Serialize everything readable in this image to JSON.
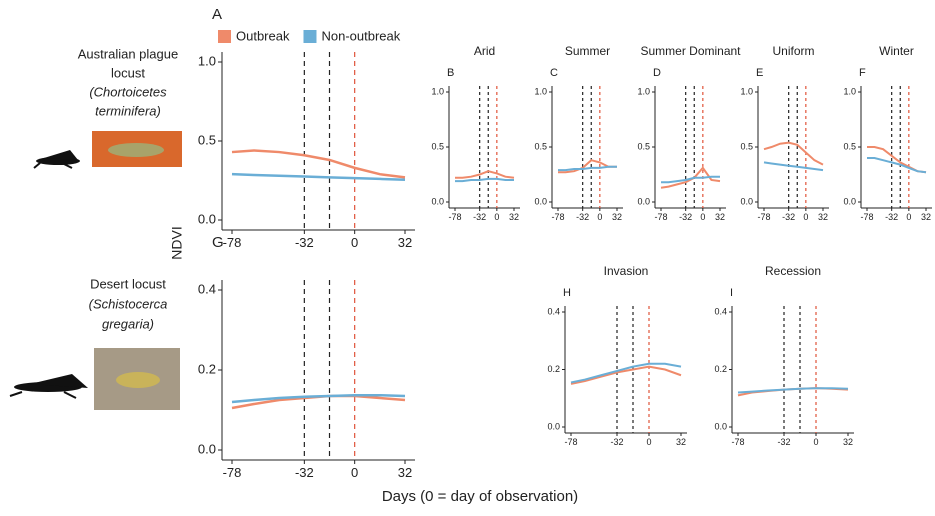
{
  "figure": {
    "y_label": "NDVI",
    "x_label": "Days (0 = day of observation)",
    "species": [
      {
        "lines": [
          "Australian plague",
          "locust",
          "(Chortoicetes",
          "terminifera)"
        ]
      },
      {
        "lines": [
          "Desert locust",
          "(Schistocerca",
          "gregaria)"
        ]
      }
    ]
  },
  "chart_data": [
    {
      "type": "line",
      "letter": "A",
      "legend": "top",
      "x": [
        -78,
        -64,
        -48,
        -32,
        -16,
        0,
        16,
        32
      ],
      "xlim": [
        -78,
        32
      ],
      "xticks": [
        -78,
        -32,
        0,
        32
      ],
      "ylim": [
        0,
        1
      ],
      "yticks": [
        {
          "value": 0,
          "label": "0.0"
        },
        {
          "value": 0.5,
          "label": "0.5"
        },
        {
          "value": 1,
          "label": "1.0"
        }
      ],
      "vlines": [
        {
          "x": -32,
          "color": "#222222"
        },
        {
          "x": -16,
          "color": "#222222"
        },
        {
          "x": 0,
          "color": "#e0533a"
        }
      ],
      "series": [
        {
          "name": "Outbreak",
          "color": "#ef8a6a",
          "values": [
            0.43,
            0.44,
            0.43,
            0.41,
            0.38,
            0.33,
            0.29,
            0.27
          ]
        },
        {
          "name": "Non-outbreak",
          "color": "#6aaed6",
          "values": [
            0.29,
            0.285,
            0.28,
            0.275,
            0.27,
            0.265,
            0.26,
            0.255
          ]
        }
      ]
    },
    {
      "type": "line",
      "letter": "B",
      "title": "Arid",
      "x": [
        -78,
        -64,
        -48,
        -32,
        -16,
        0,
        16,
        32
      ],
      "xlim": [
        -78,
        32
      ],
      "xticks": [
        -78,
        -32,
        0,
        32
      ],
      "ylim": [
        0,
        1
      ],
      "yticks": [
        {
          "value": 0,
          "label": "0.0"
        },
        {
          "value": 0.5,
          "label": "0.5"
        },
        {
          "value": 1,
          "label": "1.0"
        }
      ],
      "vlines": [
        {
          "x": -32,
          "color": "#222222"
        },
        {
          "x": -16,
          "color": "#222222"
        },
        {
          "x": 0,
          "color": "#e0533a"
        }
      ],
      "series": [
        {
          "color": "#ef8a6a",
          "values": [
            0.22,
            0.22,
            0.23,
            0.25,
            0.28,
            0.26,
            0.23,
            0.22
          ]
        },
        {
          "color": "#6aaed6",
          "values": [
            0.19,
            0.19,
            0.2,
            0.2,
            0.21,
            0.21,
            0.2,
            0.2
          ]
        }
      ]
    },
    {
      "type": "line",
      "letter": "C",
      "title": "Summer",
      "x": [
        -78,
        -64,
        -48,
        -32,
        -16,
        0,
        16,
        32
      ],
      "xlim": [
        -78,
        32
      ],
      "xticks": [
        -78,
        -32,
        0,
        32
      ],
      "ylim": [
        0,
        1
      ],
      "yticks": [
        {
          "value": 0,
          "label": "0.0"
        },
        {
          "value": 0.5,
          "label": "0.5"
        },
        {
          "value": 1,
          "label": "1.0"
        }
      ],
      "vlines": [
        {
          "x": -32,
          "color": "#222222"
        },
        {
          "x": -16,
          "color": "#222222"
        },
        {
          "x": 0,
          "color": "#e0533a"
        }
      ],
      "series": [
        {
          "color": "#ef8a6a",
          "values": [
            0.27,
            0.27,
            0.28,
            0.31,
            0.38,
            0.36,
            0.32,
            0.32
          ]
        },
        {
          "color": "#6aaed6",
          "values": [
            0.29,
            0.29,
            0.3,
            0.3,
            0.31,
            0.31,
            0.32,
            0.32
          ]
        }
      ]
    },
    {
      "type": "line",
      "letter": "D",
      "title": "Summer Dominant",
      "x": [
        -78,
        -64,
        -48,
        -32,
        -16,
        0,
        16,
        32
      ],
      "xlim": [
        -78,
        32
      ],
      "xticks": [
        -78,
        -32,
        0,
        32
      ],
      "ylim": [
        0,
        1
      ],
      "yticks": [
        {
          "value": 0,
          "label": "0.0"
        },
        {
          "value": 0.5,
          "label": "0.5"
        },
        {
          "value": 1,
          "label": "1.0"
        }
      ],
      "vlines": [
        {
          "x": -32,
          "color": "#222222"
        },
        {
          "x": -16,
          "color": "#222222"
        },
        {
          "x": 0,
          "color": "#e0533a"
        }
      ],
      "series": [
        {
          "color": "#ef8a6a",
          "values": [
            0.13,
            0.14,
            0.16,
            0.18,
            0.22,
            0.31,
            0.2,
            0.19
          ]
        },
        {
          "color": "#6aaed6",
          "values": [
            0.18,
            0.18,
            0.19,
            0.2,
            0.22,
            0.22,
            0.23,
            0.23
          ]
        }
      ]
    },
    {
      "type": "line",
      "letter": "E",
      "title": "Uniform",
      "x": [
        -78,
        -64,
        -48,
        -32,
        -16,
        0,
        16,
        32
      ],
      "xlim": [
        -78,
        32
      ],
      "xticks": [
        -78,
        -32,
        0,
        32
      ],
      "ylim": [
        0,
        1
      ],
      "yticks": [
        {
          "value": 0,
          "label": "0.0"
        },
        {
          "value": 0.5,
          "label": "0.5"
        },
        {
          "value": 1,
          "label": "1.0"
        }
      ],
      "vlines": [
        {
          "x": -32,
          "color": "#222222"
        },
        {
          "x": -16,
          "color": "#222222"
        },
        {
          "x": 0,
          "color": "#e0533a"
        }
      ],
      "series": [
        {
          "color": "#ef8a6a",
          "values": [
            0.48,
            0.5,
            0.53,
            0.54,
            0.52,
            0.45,
            0.38,
            0.34
          ]
        },
        {
          "color": "#6aaed6",
          "values": [
            0.36,
            0.35,
            0.34,
            0.33,
            0.32,
            0.31,
            0.3,
            0.29
          ]
        }
      ]
    },
    {
      "type": "line",
      "letter": "F",
      "title": "Winter",
      "x": [
        -78,
        -64,
        -48,
        -32,
        -16,
        0,
        16,
        32
      ],
      "xlim": [
        -78,
        32
      ],
      "xticks": [
        -78,
        -32,
        0,
        32
      ],
      "ylim": [
        0,
        1
      ],
      "yticks": [
        {
          "value": 0,
          "label": "0.0"
        },
        {
          "value": 0.5,
          "label": "0.5"
        },
        {
          "value": 1,
          "label": "1.0"
        }
      ],
      "vlines": [
        {
          "x": -32,
          "color": "#222222"
        },
        {
          "x": -16,
          "color": "#222222"
        },
        {
          "x": 0,
          "color": "#e0533a"
        }
      ],
      "series": [
        {
          "color": "#ef8a6a",
          "values": [
            0.5,
            0.5,
            0.48,
            0.42,
            0.36,
            0.32,
            0.28,
            0.27
          ]
        },
        {
          "color": "#6aaed6",
          "values": [
            0.4,
            0.4,
            0.38,
            0.36,
            0.34,
            0.31,
            0.28,
            0.27
          ]
        }
      ]
    },
    {
      "type": "line",
      "letter": "G",
      "x": [
        -78,
        -64,
        -48,
        -32,
        -16,
        0,
        16,
        32
      ],
      "xlim": [
        -78,
        32
      ],
      "xticks": [
        -78,
        -32,
        0,
        32
      ],
      "ylim": [
        0,
        0.4
      ],
      "yticks": [
        {
          "value": 0,
          "label": "0.0"
        },
        {
          "value": 0.2,
          "label": "0.2"
        },
        {
          "value": 0.4,
          "label": "0.4"
        }
      ],
      "vlines": [
        {
          "x": -32,
          "color": "#222222"
        },
        {
          "x": -16,
          "color": "#222222"
        },
        {
          "x": 0,
          "color": "#e0533a"
        }
      ],
      "series": [
        {
          "color": "#ef8a6a",
          "values": [
            0.105,
            0.115,
            0.125,
            0.13,
            0.135,
            0.135,
            0.13,
            0.125
          ]
        },
        {
          "color": "#6aaed6",
          "values": [
            0.12,
            0.125,
            0.13,
            0.133,
            0.135,
            0.137,
            0.137,
            0.135
          ]
        }
      ]
    },
    {
      "type": "line",
      "letter": "H",
      "title": "Invasion",
      "x": [
        -78,
        -64,
        -48,
        -32,
        -16,
        0,
        16,
        32
      ],
      "xlim": [
        -78,
        32
      ],
      "xticks": [
        -78,
        -32,
        0,
        32
      ],
      "ylim": [
        0,
        0.4
      ],
      "yticks": [
        {
          "value": 0,
          "label": "0.0"
        },
        {
          "value": 0.2,
          "label": "0.2"
        },
        {
          "value": 0.4,
          "label": "0.4"
        }
      ],
      "vlines": [
        {
          "x": -32,
          "color": "#222222"
        },
        {
          "x": -16,
          "color": "#222222"
        },
        {
          "x": 0,
          "color": "#e0533a"
        }
      ],
      "series": [
        {
          "color": "#ef8a6a",
          "values": [
            0.15,
            0.16,
            0.175,
            0.19,
            0.2,
            0.21,
            0.2,
            0.18
          ]
        },
        {
          "color": "#6aaed6",
          "values": [
            0.155,
            0.165,
            0.18,
            0.195,
            0.21,
            0.22,
            0.22,
            0.21
          ]
        }
      ]
    },
    {
      "type": "line",
      "letter": "I",
      "title": "Recession",
      "x": [
        -78,
        -64,
        -48,
        -32,
        -16,
        0,
        16,
        32
      ],
      "xlim": [
        -78,
        32
      ],
      "xticks": [
        -78,
        -32,
        0,
        32
      ],
      "ylim": [
        0,
        0.4
      ],
      "yticks": [
        {
          "value": 0,
          "label": "0.0"
        },
        {
          "value": 0.2,
          "label": "0.2"
        },
        {
          "value": 0.4,
          "label": "0.4"
        }
      ],
      "vlines": [
        {
          "x": -32,
          "color": "#222222"
        },
        {
          "x": -16,
          "color": "#222222"
        },
        {
          "x": 0,
          "color": "#e0533a"
        }
      ],
      "series": [
        {
          "color": "#ef8a6a",
          "values": [
            0.11,
            0.12,
            0.125,
            0.13,
            0.133,
            0.135,
            0.133,
            0.13
          ]
        },
        {
          "color": "#6aaed6",
          "values": [
            0.12,
            0.123,
            0.127,
            0.13,
            0.133,
            0.135,
            0.135,
            0.133
          ]
        }
      ]
    }
  ]
}
